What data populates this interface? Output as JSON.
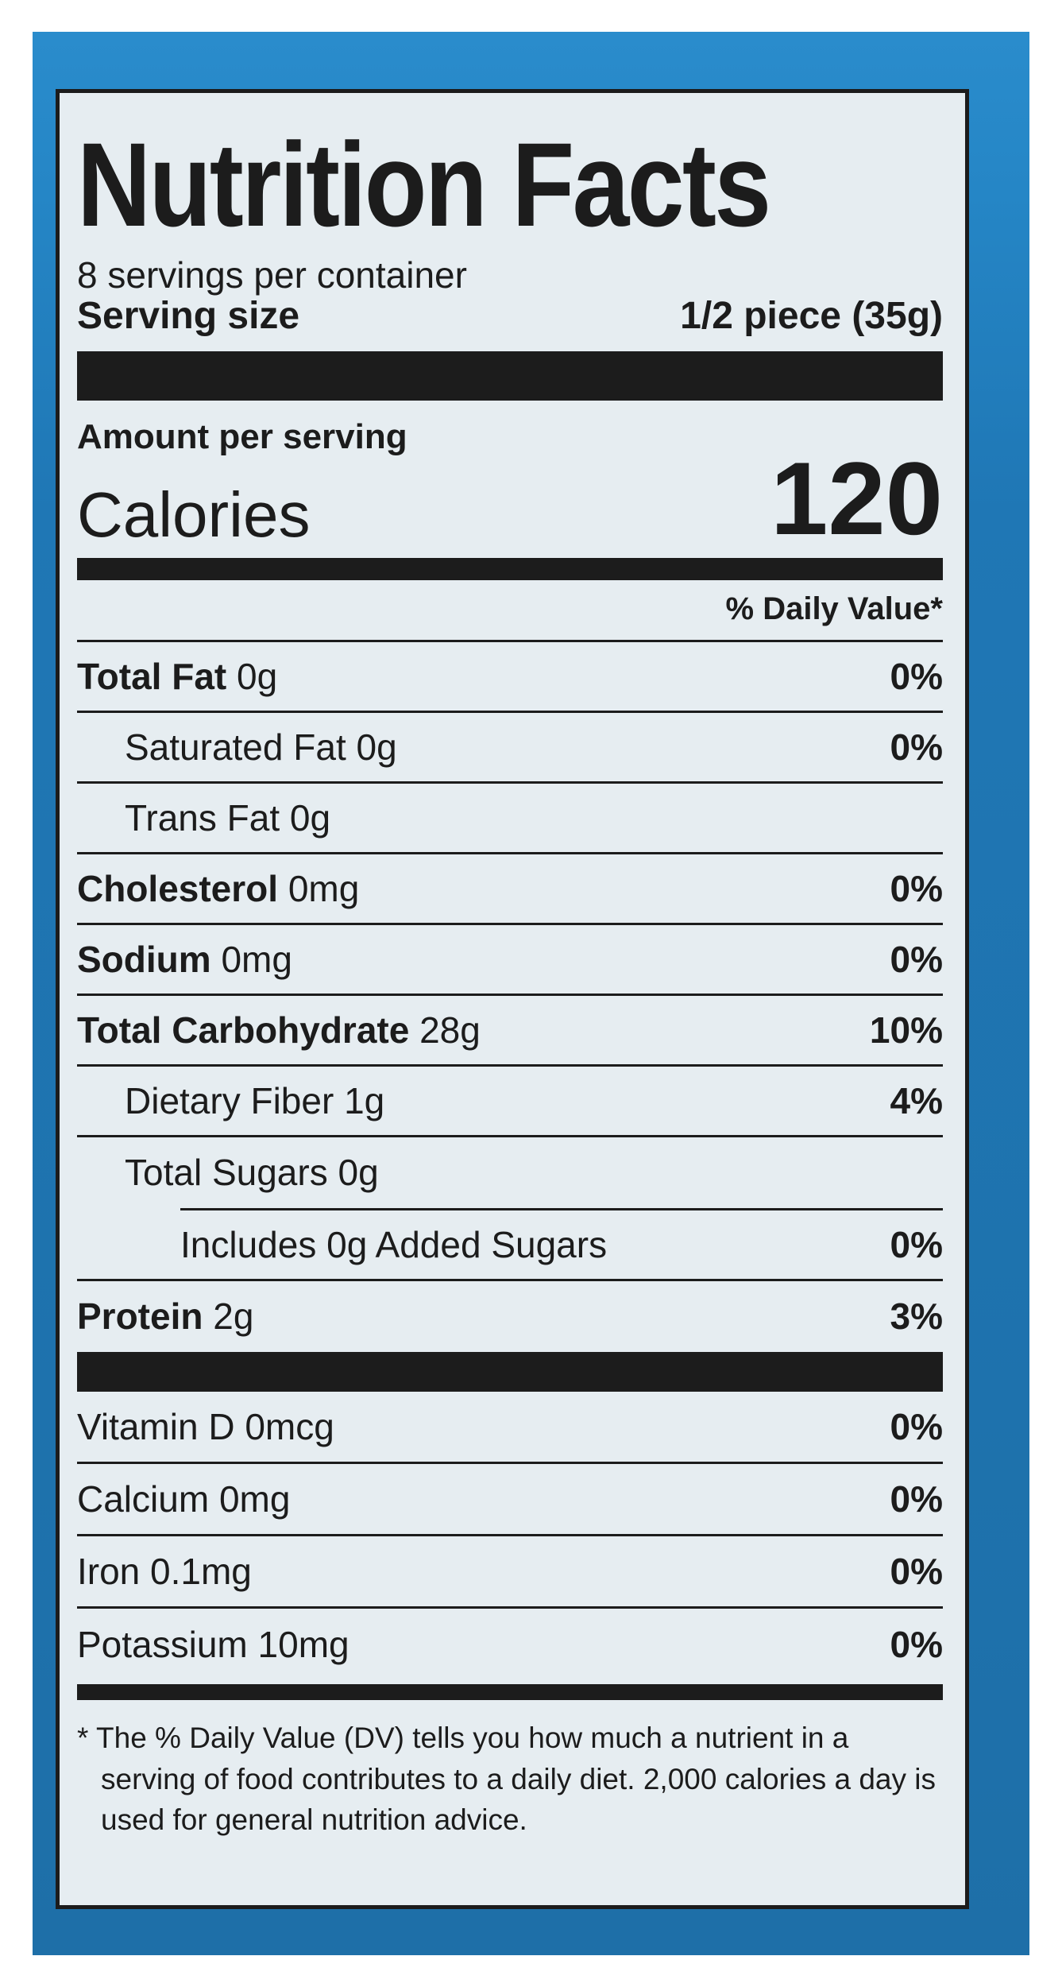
{
  "label": {
    "title": "Nutrition Facts",
    "servings_per_container": "8 servings per container",
    "serving_size_label": "Serving size",
    "serving_size_value": "1/2 piece (35g)",
    "amount_per_serving": "Amount per serving",
    "calories_label": "Calories",
    "calories_value": "120",
    "daily_value_header": "% Daily Value*",
    "nutrients": [
      {
        "name": "Total Fat",
        "amount": "0g",
        "dv": "0%"
      },
      {
        "name": "Saturated Fat",
        "amount": "0g",
        "dv": "0%"
      },
      {
        "name": "Trans Fat",
        "amount": "0g",
        "dv": ""
      },
      {
        "name": "Cholesterol",
        "amount": "0mg",
        "dv": "0%"
      },
      {
        "name": "Sodium",
        "amount": "0mg",
        "dv": "0%"
      },
      {
        "name": "Total Carbohydrate",
        "amount": "28g",
        "dv": "10%"
      },
      {
        "name": "Dietary Fiber",
        "amount": "1g",
        "dv": "4%"
      },
      {
        "name": "Total Sugars",
        "amount": "0g",
        "dv": ""
      },
      {
        "name": "Includes 0g Added Sugars",
        "amount": "",
        "dv": "0%"
      },
      {
        "name": "Protein",
        "amount": "2g",
        "dv": "3%"
      }
    ],
    "vitamins": [
      {
        "name": "Vitamin D",
        "amount": "0mcg",
        "dv": "0%"
      },
      {
        "name": "Calcium",
        "amount": "0mg",
        "dv": "0%"
      },
      {
        "name": "Iron",
        "amount": "0.1mg",
        "dv": "0%"
      },
      {
        "name": "Potassium",
        "amount": "10mg",
        "dv": "0%"
      }
    ],
    "footnote": "* The % Daily Value (DV) tells you how much a nutrient in a serving of food contributes to a daily diet. 2,000 calories a day is used for general nutrition advice."
  },
  "colors": {
    "package_blue": "#2380c0",
    "label_background": "#e6edf1",
    "ink": "#1c1c1c"
  }
}
